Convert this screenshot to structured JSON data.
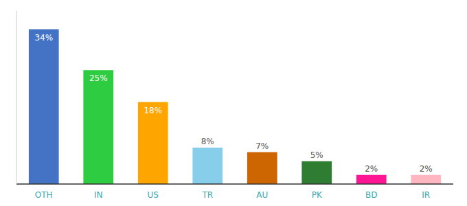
{
  "chart_data": {
    "type": "bar",
    "categories": [
      "OTH",
      "IN",
      "US",
      "TR",
      "AU",
      "PK",
      "BD",
      "IR"
    ],
    "values": [
      34,
      25,
      18,
      8,
      7,
      5,
      2,
      2
    ],
    "value_labels": [
      "34%",
      "25%",
      "18%",
      "8%",
      "7%",
      "5%",
      "2%",
      "2%"
    ],
    "colors": [
      "#4472C4",
      "#2ECC40",
      "#FFA500",
      "#87CEEB",
      "#CD6600",
      "#2E7D32",
      "#FF1493",
      "#FFB6C1"
    ],
    "ylim": [
      0,
      38
    ],
    "data_labels": true,
    "tick_labels": "x",
    "grid": false
  }
}
